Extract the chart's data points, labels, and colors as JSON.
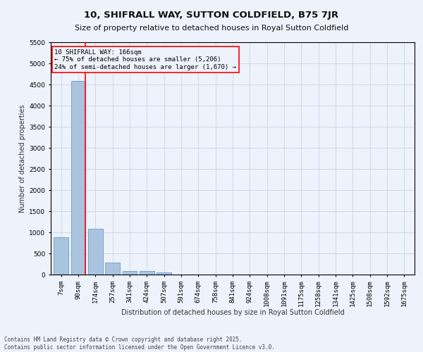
{
  "title": "10, SHIFRALL WAY, SUTTON COLDFIELD, B75 7JR",
  "subtitle": "Size of property relative to detached houses in Royal Sutton Coldfield",
  "xlabel": "Distribution of detached houses by size in Royal Sutton Coldfield",
  "ylabel": "Number of detached properties",
  "categories": [
    "7sqm",
    "90sqm",
    "174sqm",
    "257sqm",
    "341sqm",
    "424sqm",
    "507sqm",
    "591sqm",
    "674sqm",
    "758sqm",
    "841sqm",
    "924sqm",
    "1008sqm",
    "1091sqm",
    "1175sqm",
    "1258sqm",
    "1341sqm",
    "1425sqm",
    "1508sqm",
    "1592sqm",
    "1675sqm"
  ],
  "values": [
    880,
    4580,
    1080,
    290,
    90,
    80,
    50,
    0,
    0,
    0,
    0,
    0,
    0,
    0,
    0,
    0,
    0,
    0,
    0,
    0,
    0
  ],
  "bar_color": "#aac4e0",
  "bar_edge_color": "#6699cc",
  "vline_x_index": 1,
  "vline_color": "red",
  "annotation_title": "10 SHIFRALL WAY: 166sqm",
  "annotation_line1": "← 75% of detached houses are smaller (5,206)",
  "annotation_line2": "24% of semi-detached houses are larger (1,670) →",
  "annotation_box_color": "red",
  "ylim": [
    0,
    5500
  ],
  "yticks": [
    0,
    500,
    1000,
    1500,
    2000,
    2500,
    3000,
    3500,
    4000,
    4500,
    5000,
    5500
  ],
  "background_color": "#eef2fb",
  "grid_color": "#c8d4e8",
  "footer1": "Contains HM Land Registry data © Crown copyright and database right 2025.",
  "footer2": "Contains public sector information licensed under the Open Government Licence v3.0.",
  "title_fontsize": 9.5,
  "subtitle_fontsize": 8,
  "axis_label_fontsize": 7,
  "tick_fontsize": 6.5,
  "annotation_fontsize": 6.5,
  "footer_fontsize": 5.5
}
